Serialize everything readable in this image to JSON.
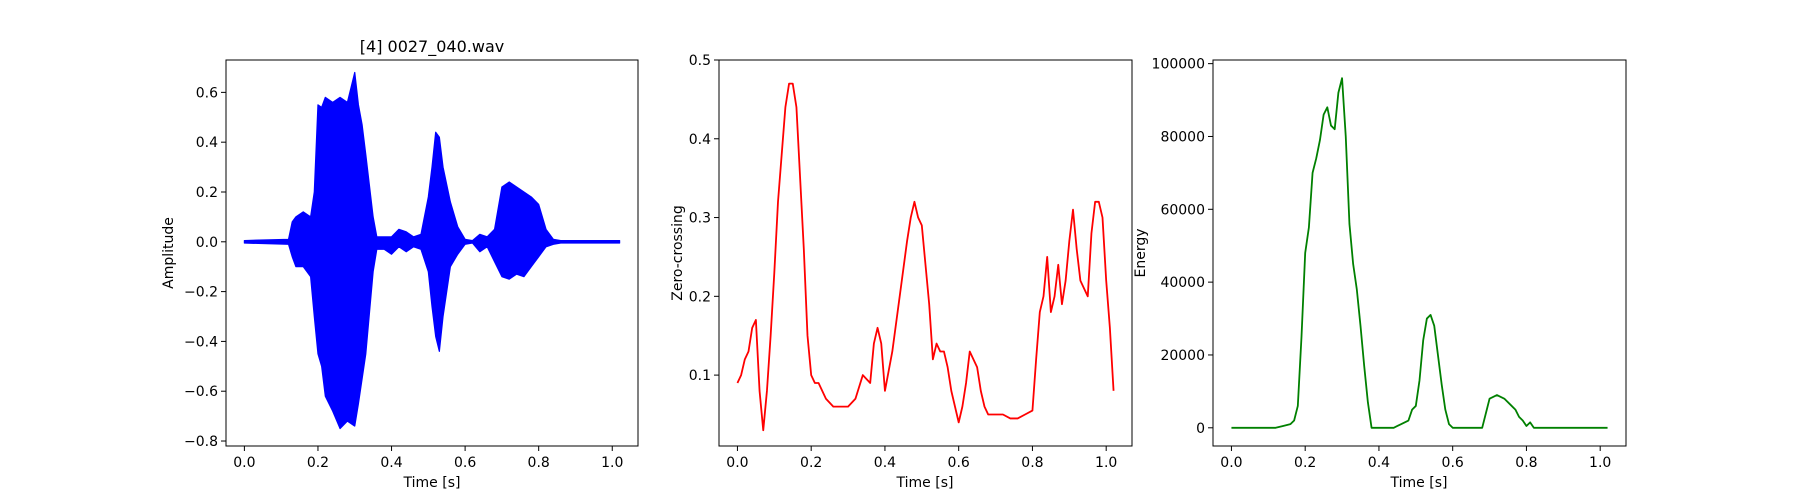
{
  "chart_data": [
    {
      "type": "line",
      "title": "[4] 0027_040.wav",
      "xlabel": "Time [s]",
      "ylabel": "Amplitude",
      "xlim": [
        -0.05,
        1.07
      ],
      "ylim": [
        -0.82,
        0.73
      ],
      "xticks": [
        0.0,
        0.2,
        0.4,
        0.6,
        0.8,
        1.0
      ],
      "xtick_labels": [
        "0.0",
        "0.2",
        "0.4",
        "0.6",
        "0.8",
        "1.0"
      ],
      "yticks": [
        0.6,
        0.4,
        0.2,
        0.0,
        -0.2,
        -0.4,
        -0.6,
        -0.8
      ],
      "ytick_labels": [
        "0.6",
        "0.4",
        "0.2",
        "0.0",
        "−0.2",
        "−0.4",
        "−0.6",
        "−0.8"
      ],
      "color": "#0000ff",
      "grid": false,
      "series": [
        {
          "kind": "waveform-envelope",
          "x": [
            0.0,
            0.12,
            0.13,
            0.14,
            0.16,
            0.18,
            0.19,
            0.2,
            0.21,
            0.22,
            0.24,
            0.26,
            0.28,
            0.3,
            0.31,
            0.32,
            0.33,
            0.35,
            0.36,
            0.38,
            0.4,
            0.42,
            0.44,
            0.46,
            0.48,
            0.5,
            0.51,
            0.52,
            0.53,
            0.54,
            0.56,
            0.58,
            0.6,
            0.62,
            0.64,
            0.66,
            0.68,
            0.7,
            0.72,
            0.74,
            0.76,
            0.78,
            0.8,
            0.82,
            0.84,
            0.86,
            1.02
          ],
          "upper": [
            0.005,
            0.01,
            0.08,
            0.1,
            0.12,
            0.1,
            0.2,
            0.55,
            0.54,
            0.58,
            0.56,
            0.58,
            0.56,
            0.68,
            0.55,
            0.47,
            0.35,
            0.1,
            0.02,
            0.02,
            0.02,
            0.05,
            0.04,
            0.02,
            0.03,
            0.18,
            0.3,
            0.44,
            0.42,
            0.3,
            0.16,
            0.06,
            0.01,
            0.005,
            0.03,
            0.02,
            0.05,
            0.22,
            0.24,
            0.22,
            0.2,
            0.18,
            0.15,
            0.05,
            0.01,
            0.005,
            0.005
          ],
          "lower": [
            -0.005,
            -0.01,
            -0.06,
            -0.1,
            -0.1,
            -0.14,
            -0.3,
            -0.45,
            -0.5,
            -0.62,
            -0.68,
            -0.75,
            -0.72,
            -0.74,
            -0.65,
            -0.55,
            -0.45,
            -0.12,
            -0.03,
            -0.03,
            -0.05,
            -0.02,
            -0.04,
            -0.02,
            -0.03,
            -0.12,
            -0.26,
            -0.38,
            -0.44,
            -0.3,
            -0.1,
            -0.05,
            -0.01,
            -0.005,
            -0.04,
            -0.02,
            -0.08,
            -0.14,
            -0.15,
            -0.13,
            -0.14,
            -0.1,
            -0.06,
            -0.02,
            -0.01,
            -0.005,
            -0.005
          ]
        }
      ]
    },
    {
      "type": "line",
      "title": "",
      "xlabel": "Time [s]",
      "ylabel": "Zero-crossing",
      "xlim": [
        -0.05,
        1.07
      ],
      "ylim": [
        0.01,
        0.5
      ],
      "xticks": [
        0.0,
        0.2,
        0.4,
        0.6,
        0.8,
        1.0
      ],
      "xtick_labels": [
        "0.0",
        "0.2",
        "0.4",
        "0.6",
        "0.8",
        "1.0"
      ],
      "yticks": [
        0.1,
        0.2,
        0.3,
        0.4,
        0.5
      ],
      "ytick_labels": [
        "0.1",
        "0.2",
        "0.3",
        "0.4",
        "0.5"
      ],
      "color": "#ff0000",
      "grid": false,
      "series": [
        {
          "x": [
            0.0,
            0.01,
            0.02,
            0.03,
            0.04,
            0.05,
            0.06,
            0.07,
            0.08,
            0.09,
            0.1,
            0.11,
            0.12,
            0.13,
            0.14,
            0.15,
            0.16,
            0.17,
            0.18,
            0.19,
            0.2,
            0.21,
            0.22,
            0.24,
            0.26,
            0.28,
            0.3,
            0.32,
            0.34,
            0.36,
            0.37,
            0.38,
            0.39,
            0.4,
            0.42,
            0.44,
            0.46,
            0.47,
            0.48,
            0.49,
            0.5,
            0.51,
            0.52,
            0.53,
            0.54,
            0.55,
            0.56,
            0.57,
            0.58,
            0.59,
            0.6,
            0.61,
            0.62,
            0.63,
            0.64,
            0.65,
            0.66,
            0.67,
            0.68,
            0.7,
            0.72,
            0.74,
            0.76,
            0.78,
            0.8,
            0.81,
            0.82,
            0.83,
            0.84,
            0.85,
            0.86,
            0.87,
            0.88,
            0.89,
            0.9,
            0.91,
            0.92,
            0.93,
            0.94,
            0.95,
            0.96,
            0.97,
            0.98,
            0.99,
            1.0,
            1.01,
            1.02
          ],
          "y": [
            0.09,
            0.1,
            0.12,
            0.13,
            0.16,
            0.17,
            0.08,
            0.03,
            0.08,
            0.15,
            0.23,
            0.32,
            0.38,
            0.44,
            0.47,
            0.47,
            0.44,
            0.35,
            0.26,
            0.15,
            0.1,
            0.09,
            0.09,
            0.07,
            0.06,
            0.06,
            0.06,
            0.07,
            0.1,
            0.09,
            0.14,
            0.16,
            0.14,
            0.08,
            0.13,
            0.2,
            0.27,
            0.3,
            0.32,
            0.3,
            0.29,
            0.24,
            0.19,
            0.12,
            0.14,
            0.13,
            0.13,
            0.11,
            0.08,
            0.06,
            0.04,
            0.06,
            0.09,
            0.13,
            0.12,
            0.11,
            0.08,
            0.06,
            0.05,
            0.05,
            0.05,
            0.045,
            0.045,
            0.05,
            0.055,
            0.12,
            0.18,
            0.2,
            0.25,
            0.18,
            0.2,
            0.24,
            0.19,
            0.22,
            0.27,
            0.31,
            0.26,
            0.22,
            0.21,
            0.2,
            0.28,
            0.32,
            0.32,
            0.3,
            0.22,
            0.16,
            0.08
          ]
        }
      ]
    },
    {
      "type": "line",
      "title": "",
      "xlabel": "Time [s]",
      "ylabel": "Energy",
      "xlim": [
        -0.05,
        1.07
      ],
      "ylim": [
        -5000,
        101000
      ],
      "xticks": [
        0.0,
        0.2,
        0.4,
        0.6,
        0.8,
        1.0
      ],
      "xtick_labels": [
        "0.0",
        "0.2",
        "0.4",
        "0.6",
        "0.8",
        "1.0"
      ],
      "yticks": [
        0,
        20000,
        40000,
        60000,
        80000,
        100000
      ],
      "ytick_labels": [
        "0",
        "20000",
        "40000",
        "60000",
        "80000",
        "100000"
      ],
      "color": "#008000",
      "grid": false,
      "series": [
        {
          "x": [
            0.0,
            0.12,
            0.14,
            0.16,
            0.17,
            0.18,
            0.19,
            0.2,
            0.21,
            0.22,
            0.23,
            0.24,
            0.25,
            0.26,
            0.27,
            0.28,
            0.29,
            0.3,
            0.31,
            0.32,
            0.33,
            0.34,
            0.35,
            0.36,
            0.37,
            0.38,
            0.4,
            0.42,
            0.44,
            0.46,
            0.48,
            0.49,
            0.5,
            0.51,
            0.52,
            0.53,
            0.54,
            0.55,
            0.56,
            0.57,
            0.58,
            0.59,
            0.6,
            0.62,
            0.64,
            0.66,
            0.68,
            0.69,
            0.7,
            0.72,
            0.74,
            0.76,
            0.77,
            0.78,
            0.79,
            0.8,
            0.81,
            0.82,
            0.84,
            0.9,
            1.02
          ],
          "y": [
            0,
            0,
            500,
            1000,
            2000,
            6000,
            25000,
            48000,
            55000,
            70000,
            74000,
            79000,
            86000,
            88000,
            83000,
            82000,
            92000,
            96000,
            80000,
            56000,
            45000,
            38000,
            28000,
            17000,
            7000,
            0,
            0,
            0,
            0,
            1000,
            2000,
            5000,
            6000,
            13000,
            24000,
            30000,
            31000,
            28000,
            20000,
            12000,
            5000,
            1000,
            0,
            0,
            0,
            0,
            0,
            4000,
            8000,
            9000,
            8000,
            6000,
            5000,
            3000,
            2000,
            500,
            1500,
            0,
            0,
            0,
            0
          ]
        }
      ]
    }
  ]
}
